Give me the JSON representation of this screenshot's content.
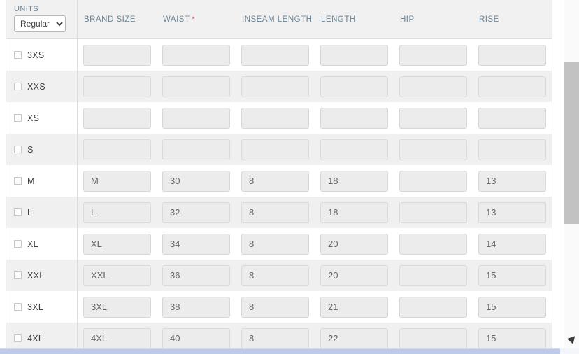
{
  "units": {
    "label": "UNITS",
    "selected": "Regular"
  },
  "header": {
    "columns": [
      {
        "label": "BRAND SIZE",
        "marker": ""
      },
      {
        "label": "WAIST",
        "marker": "*"
      },
      {
        "label": "INSEAM LENGTH",
        "marker": ""
      },
      {
        "label": "LENGTH",
        "marker": ""
      },
      {
        "label": "HIP",
        "marker": ""
      },
      {
        "label": "RISE",
        "marker": ""
      }
    ]
  },
  "rows": [
    {
      "size": "3XS",
      "values": [
        "",
        "",
        "",
        "",
        "",
        ""
      ]
    },
    {
      "size": "XXS",
      "values": [
        "",
        "",
        "",
        "",
        "",
        ""
      ]
    },
    {
      "size": "XS",
      "values": [
        "",
        "",
        "",
        "",
        "",
        ""
      ]
    },
    {
      "size": "S",
      "values": [
        "",
        "",
        "",
        "",
        "",
        ""
      ]
    },
    {
      "size": "M",
      "values": [
        "M",
        "30",
        "8",
        "18",
        "",
        "13"
      ]
    },
    {
      "size": "L",
      "values": [
        "L",
        "32",
        "8",
        "18",
        "",
        "13"
      ]
    },
    {
      "size": "XL",
      "values": [
        "XL",
        "34",
        "8",
        "20",
        "",
        "14"
      ]
    },
    {
      "size": "XXL",
      "values": [
        "XXL",
        "36",
        "8",
        "20",
        "",
        "15"
      ]
    },
    {
      "size": "3XL",
      "values": [
        "3XL",
        "38",
        "8",
        "21",
        "",
        "15"
      ]
    },
    {
      "size": "4XL",
      "values": [
        "4XL",
        "40",
        "8",
        "22",
        "",
        "15"
      ]
    }
  ],
  "colors": {
    "header_text": "#6d8494",
    "required_asterisk": "#e05a5a",
    "row_alt_bg": "#f0f0f0",
    "input_bg": "#ececec",
    "input_border": "#d7d7d7",
    "vscroll_thumb": "#c2c2c2",
    "hscroll_thumb": "#bccbe9"
  }
}
